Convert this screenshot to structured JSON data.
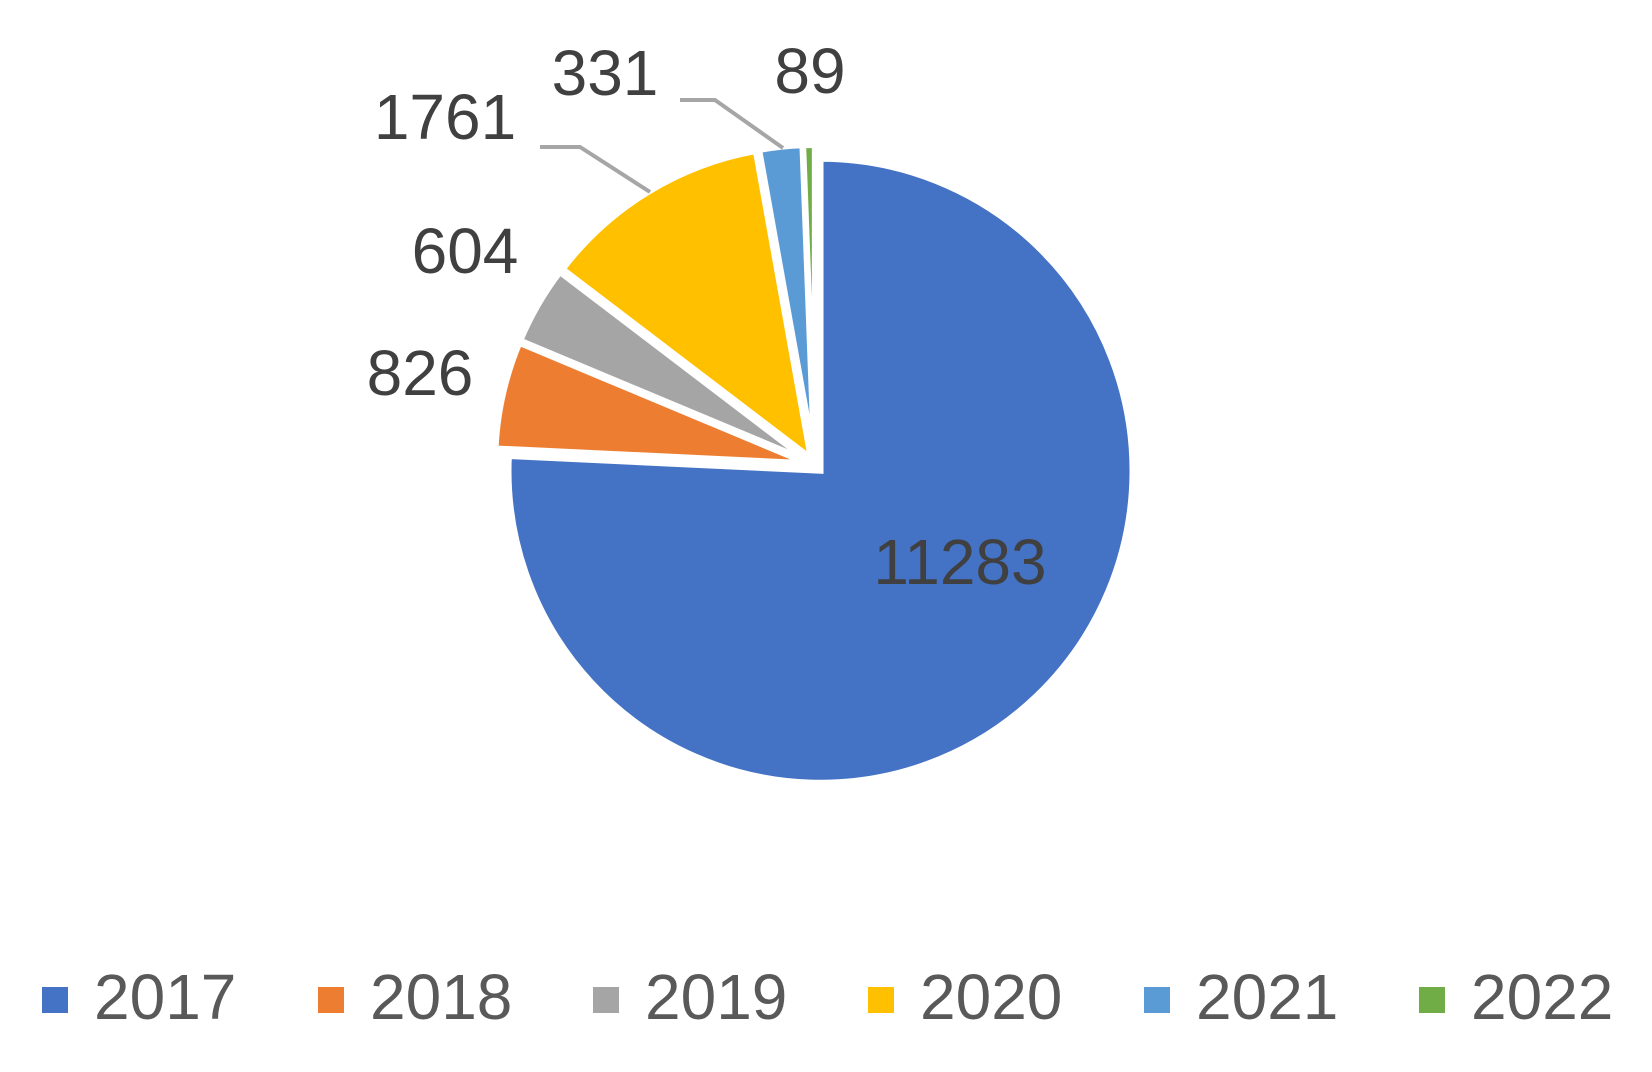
{
  "chart_data": {
    "type": "pie",
    "categories": [
      "2017",
      "2018",
      "2019",
      "2020",
      "2021",
      "2022"
    ],
    "values": [
      11283,
      826,
      604,
      1761,
      331,
      89
    ],
    "colors": [
      "#4472c4",
      "#ed7d31",
      "#a5a5a5",
      "#ffc000",
      "#5b9bd5",
      "#70ad47"
    ],
    "legend": "bottom"
  }
}
